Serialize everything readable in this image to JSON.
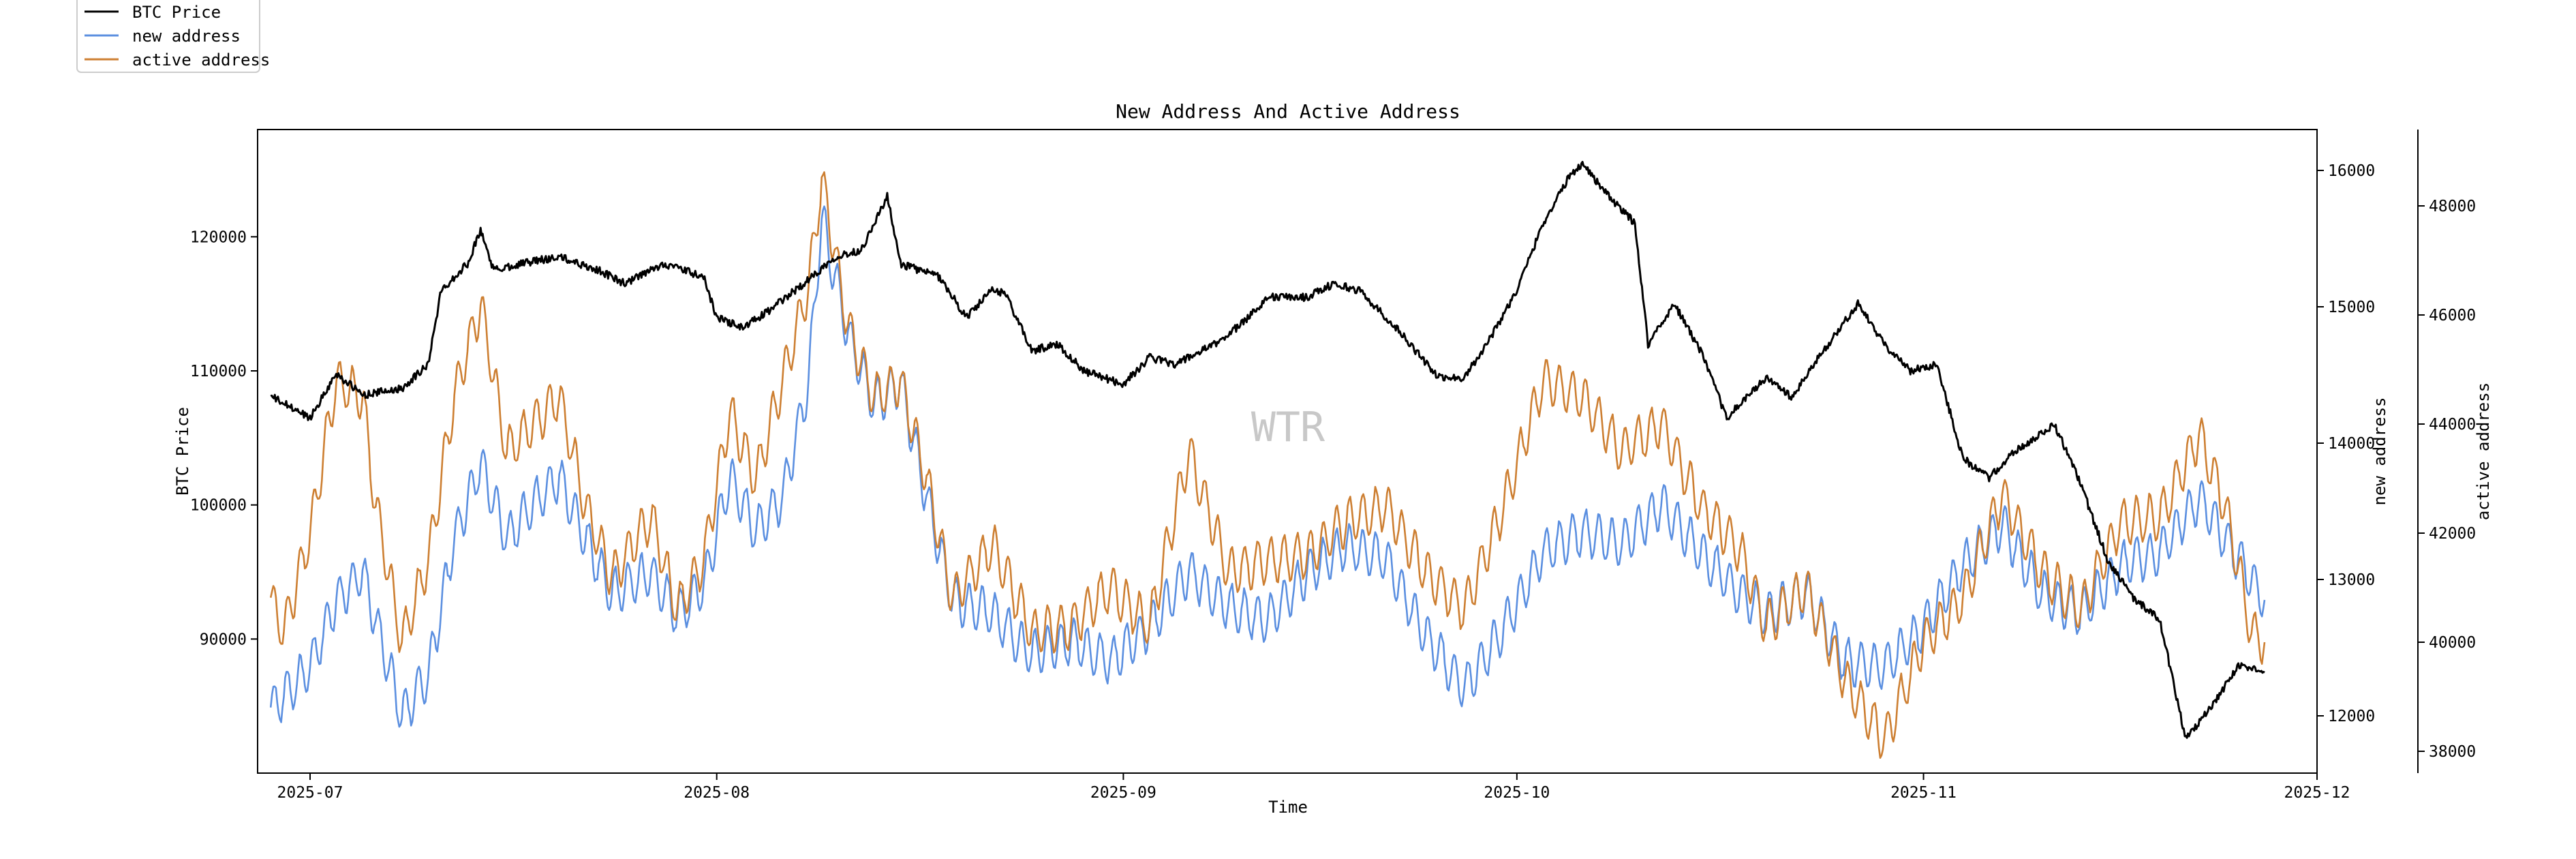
{
  "chart_data": {
    "type": "line",
    "title": "New Address And Active Address",
    "xlabel": "Time",
    "watermark": "WTR",
    "x_ticks": [
      "2025-07",
      "2025-08",
      "2025-09",
      "2025-10",
      "2025-11",
      "2025-12"
    ],
    "x_range": [
      "2025-06-27",
      "2025-12-01"
    ],
    "axes": {
      "left": {
        "label": "BTC Price",
        "ylim": [
          80000,
          128000
        ],
        "ticks": [
          "90000",
          "100000",
          "110000",
          "120000"
        ],
        "tick_values": [
          90000,
          100000,
          110000,
          120000
        ]
      },
      "right1": {
        "label": "new address",
        "ylim": [
          11580,
          16300
        ],
        "ticks": [
          "12000",
          "13000",
          "14000",
          "15000",
          "16000"
        ],
        "tick_values": [
          12000,
          13000,
          14000,
          15000,
          16000
        ]
      },
      "right2": {
        "label": "active address",
        "ylim": [
          37600,
          49400
        ],
        "ticks": [
          "38000",
          "40000",
          "42000",
          "44000",
          "46000",
          "48000"
        ],
        "tick_values": [
          38000,
          40000,
          42000,
          44000,
          46000,
          48000
        ]
      }
    },
    "legend": [
      "BTC Price",
      "new address",
      "active address"
    ],
    "colors": {
      "BTC Price": "#000000",
      "new address": "#5b8fe0",
      "active address": "#cd7f32"
    },
    "series": [
      {
        "name": "BTC Price",
        "axis": "left",
        "points": [
          [
            "2025-06-28",
            108100
          ],
          [
            "2025-07-01",
            106500
          ],
          [
            "2025-07-03",
            109800
          ],
          [
            "2025-07-05",
            108200
          ],
          [
            "2025-07-08",
            108700
          ],
          [
            "2025-07-10",
            110500
          ],
          [
            "2025-07-11",
            116000
          ],
          [
            "2025-07-13",
            118000
          ],
          [
            "2025-07-14",
            120500
          ],
          [
            "2025-07-15",
            117500
          ],
          [
            "2025-07-17",
            118000
          ],
          [
            "2025-07-20",
            118500
          ],
          [
            "2025-07-23",
            117500
          ],
          [
            "2025-07-25",
            116500
          ],
          [
            "2025-07-28",
            118000
          ],
          [
            "2025-07-31",
            117000
          ],
          [
            "2025-08-01",
            114000
          ],
          [
            "2025-08-03",
            113200
          ],
          [
            "2025-08-05",
            114500
          ],
          [
            "2025-08-08",
            116800
          ],
          [
            "2025-08-10",
            118500
          ],
          [
            "2025-08-12",
            119000
          ],
          [
            "2025-08-14",
            123000
          ],
          [
            "2025-08-15",
            118000
          ],
          [
            "2025-08-18",
            117000
          ],
          [
            "2025-08-20",
            114000
          ],
          [
            "2025-08-22",
            116000
          ],
          [
            "2025-08-23",
            115800
          ],
          [
            "2025-08-25",
            111500
          ],
          [
            "2025-08-27",
            112000
          ],
          [
            "2025-08-29",
            110000
          ],
          [
            "2025-09-01",
            109000
          ],
          [
            "2025-09-03",
            111000
          ],
          [
            "2025-09-05",
            110500
          ],
          [
            "2025-09-08",
            112000
          ],
          [
            "2025-09-10",
            113500
          ],
          [
            "2025-09-12",
            115500
          ],
          [
            "2025-09-15",
            115500
          ],
          [
            "2025-09-17",
            116500
          ],
          [
            "2025-09-19",
            116000
          ],
          [
            "2025-09-22",
            113000
          ],
          [
            "2025-09-25",
            109500
          ],
          [
            "2025-09-27",
            109500
          ],
          [
            "2025-09-29",
            112500
          ],
          [
            "2025-10-01",
            116000
          ],
          [
            "2025-10-03",
            121000
          ],
          [
            "2025-10-05",
            124500
          ],
          [
            "2025-10-06",
            125500
          ],
          [
            "2025-10-08",
            123000
          ],
          [
            "2025-10-10",
            121000
          ],
          [
            "2025-10-11",
            112000
          ],
          [
            "2025-10-13",
            115000
          ],
          [
            "2025-10-15",
            111500
          ],
          [
            "2025-10-17",
            106500
          ],
          [
            "2025-10-20",
            109500
          ],
          [
            "2025-10-22",
            108000
          ],
          [
            "2025-10-24",
            111000
          ],
          [
            "2025-10-27",
            115000
          ],
          [
            "2025-10-29",
            112000
          ],
          [
            "2025-10-31",
            110000
          ],
          [
            "2025-11-02",
            110500
          ],
          [
            "2025-11-04",
            103500
          ],
          [
            "2025-11-06",
            102000
          ],
          [
            "2025-11-08",
            104000
          ],
          [
            "2025-11-11",
            106000
          ],
          [
            "2025-11-13",
            101500
          ],
          [
            "2025-11-15",
            96000
          ],
          [
            "2025-11-17",
            93000
          ],
          [
            "2025-11-19",
            91500
          ],
          [
            "2025-11-21",
            82500
          ],
          [
            "2025-11-23",
            85000
          ],
          [
            "2025-11-25",
            88000
          ],
          [
            "2025-11-27",
            87500
          ]
        ]
      },
      {
        "name": "new address",
        "axis": "right1",
        "points": [
          [
            "2025-06-28",
            12050
          ],
          [
            "2025-06-29",
            12150
          ],
          [
            "2025-07-01",
            12350
          ],
          [
            "2025-07-03",
            12850
          ],
          [
            "2025-07-05",
            13050
          ],
          [
            "2025-07-06",
            12700
          ],
          [
            "2025-07-08",
            12000
          ],
          [
            "2025-07-10",
            12300
          ],
          [
            "2025-07-12",
            13300
          ],
          [
            "2025-07-14",
            13850
          ],
          [
            "2025-07-16",
            13300
          ],
          [
            "2025-07-18",
            13550
          ],
          [
            "2025-07-20",
            13750
          ],
          [
            "2025-07-22",
            13300
          ],
          [
            "2025-07-24",
            12900
          ],
          [
            "2025-07-27",
            13050
          ],
          [
            "2025-07-29",
            12750
          ],
          [
            "2025-07-31",
            12950
          ],
          [
            "2025-08-02",
            13750
          ],
          [
            "2025-08-04",
            13350
          ],
          [
            "2025-08-06",
            13600
          ],
          [
            "2025-08-08",
            14450
          ],
          [
            "2025-08-09",
            15650
          ],
          [
            "2025-08-11",
            14800
          ],
          [
            "2025-08-13",
            14300
          ],
          [
            "2025-08-15",
            14450
          ],
          [
            "2025-08-17",
            13600
          ],
          [
            "2025-08-19",
            12850
          ],
          [
            "2025-08-22",
            12750
          ],
          [
            "2025-08-25",
            12450
          ],
          [
            "2025-08-28",
            12550
          ],
          [
            "2025-08-31",
            12400
          ],
          [
            "2025-09-03",
            12650
          ],
          [
            "2025-09-06",
            13050
          ],
          [
            "2025-09-09",
            12800
          ],
          [
            "2025-09-12",
            12700
          ],
          [
            "2025-09-15",
            13050
          ],
          [
            "2025-09-18",
            13250
          ],
          [
            "2025-09-21",
            13150
          ],
          [
            "2025-09-24",
            12600
          ],
          [
            "2025-09-27",
            12200
          ],
          [
            "2025-09-30",
            12650
          ],
          [
            "2025-10-03",
            13200
          ],
          [
            "2025-10-06",
            13350
          ],
          [
            "2025-10-09",
            13250
          ],
          [
            "2025-10-12",
            13550
          ],
          [
            "2025-10-15",
            13200
          ],
          [
            "2025-10-18",
            12900
          ],
          [
            "2025-10-20",
            12750
          ],
          [
            "2025-10-23",
            12900
          ],
          [
            "2025-10-26",
            12400
          ],
          [
            "2025-10-29",
            12350
          ],
          [
            "2025-11-01",
            12650
          ],
          [
            "2025-11-04",
            13100
          ],
          [
            "2025-11-07",
            13400
          ],
          [
            "2025-11-10",
            12900
          ],
          [
            "2025-11-13",
            12750
          ],
          [
            "2025-11-16",
            13100
          ],
          [
            "2025-11-19",
            13200
          ],
          [
            "2025-11-22",
            13600
          ],
          [
            "2025-11-24",
            13300
          ],
          [
            "2025-11-26",
            13000
          ],
          [
            "2025-11-27",
            12850
          ]
        ]
      },
      {
        "name": "active address",
        "axis": "right2",
        "points": [
          [
            "2025-06-28",
            40800
          ],
          [
            "2025-06-29",
            40200
          ],
          [
            "2025-07-01",
            42000
          ],
          [
            "2025-07-03",
            44800
          ],
          [
            "2025-07-05",
            44500
          ],
          [
            "2025-07-06",
            42500
          ],
          [
            "2025-07-08",
            40000
          ],
          [
            "2025-07-10",
            41500
          ],
          [
            "2025-07-12",
            44500
          ],
          [
            "2025-07-14",
            46200
          ],
          [
            "2025-07-16",
            43500
          ],
          [
            "2025-07-18",
            44000
          ],
          [
            "2025-07-20",
            44500
          ],
          [
            "2025-07-22",
            42500
          ],
          [
            "2025-07-24",
            41200
          ],
          [
            "2025-07-27",
            42300
          ],
          [
            "2025-07-29",
            40600
          ],
          [
            "2025-07-31",
            41500
          ],
          [
            "2025-08-02",
            44200
          ],
          [
            "2025-08-04",
            43000
          ],
          [
            "2025-08-06",
            44800
          ],
          [
            "2025-08-08",
            46500
          ],
          [
            "2025-08-09",
            48500
          ],
          [
            "2025-08-11",
            45800
          ],
          [
            "2025-08-13",
            44500
          ],
          [
            "2025-08-15",
            44800
          ],
          [
            "2025-08-17",
            43000
          ],
          [
            "2025-08-19",
            40800
          ],
          [
            "2025-08-22",
            41800
          ],
          [
            "2025-08-25",
            40200
          ],
          [
            "2025-08-28",
            40300
          ],
          [
            "2025-08-31",
            41000
          ],
          [
            "2025-09-03",
            40300
          ],
          [
            "2025-09-06",
            43500
          ],
          [
            "2025-09-09",
            41300
          ],
          [
            "2025-09-12",
            41500
          ],
          [
            "2025-09-15",
            41600
          ],
          [
            "2025-09-18",
            42200
          ],
          [
            "2025-09-21",
            42500
          ],
          [
            "2025-09-24",
            41300
          ],
          [
            "2025-09-27",
            40600
          ],
          [
            "2025-09-30",
            42500
          ],
          [
            "2025-10-03",
            44800
          ],
          [
            "2025-10-06",
            44500
          ],
          [
            "2025-10-09",
            43500
          ],
          [
            "2025-10-12",
            44000
          ],
          [
            "2025-10-15",
            42500
          ],
          [
            "2025-10-18",
            41700
          ],
          [
            "2025-10-20",
            40300
          ],
          [
            "2025-10-23",
            41000
          ],
          [
            "2025-10-26",
            39300
          ],
          [
            "2025-10-29",
            38200
          ],
          [
            "2025-11-01",
            40000
          ],
          [
            "2025-11-04",
            40800
          ],
          [
            "2025-11-07",
            42700
          ],
          [
            "2025-11-10",
            41300
          ],
          [
            "2025-11-13",
            40600
          ],
          [
            "2025-11-16",
            42200
          ],
          [
            "2025-11-19",
            42300
          ],
          [
            "2025-11-22",
            43800
          ],
          [
            "2025-11-24",
            42500
          ],
          [
            "2025-11-26",
            40200
          ],
          [
            "2025-11-27",
            40000
          ]
        ]
      }
    ]
  }
}
